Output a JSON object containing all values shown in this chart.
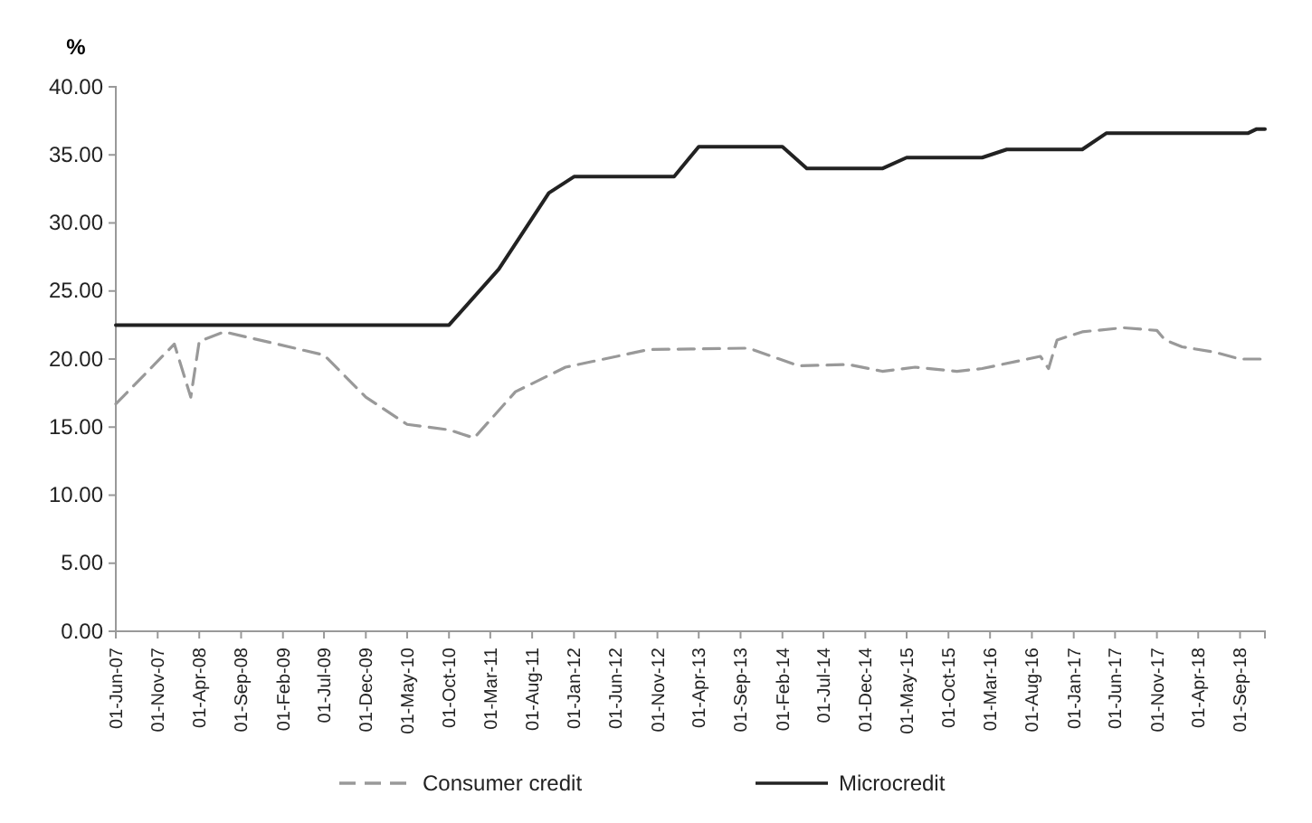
{
  "chart_data": {
    "type": "line",
    "ylabel": "%",
    "x": [
      "2007-06",
      "2008-01",
      "2008-03",
      "2008-04",
      "2008-07",
      "2009-07",
      "2009-12",
      "2010-05",
      "2010-10",
      "2011-01",
      "2011-06",
      "2011-12",
      "2012-10",
      "2013-10",
      "2014-04",
      "2014-10",
      "2015-02",
      "2015-06",
      "2015-11",
      "2016-02",
      "2016-09",
      "2016-10",
      "2016-11",
      "2017-02",
      "2017-07",
      "2017-11",
      "2017-12",
      "2018-02",
      "2018-06",
      "2018-09",
      "2018-12"
    ],
    "series": [
      {
        "name": "Consumer credit",
        "color": "#999999",
        "line_style": "dashed",
        "values": [
          16.7,
          21.1,
          17.2,
          21.3,
          22.0,
          20.3,
          17.2,
          15.2,
          14.8,
          14.2,
          17.6,
          19.4,
          20.7,
          20.8,
          19.5,
          19.6,
          19.1,
          19.4,
          19.1,
          19.3,
          20.2,
          19.3,
          21.4,
          22.0,
          22.3,
          22.1,
          21.4,
          20.9,
          20.5,
          20.0,
          20.0
        ]
      },
      {
        "name": "Microcredit",
        "color": "#222222",
        "line_style": "solid",
        "x": [
          "2007-06",
          "2010-10",
          "2011-04",
          "2011-10",
          "2012-01",
          "2013-01",
          "2013-04",
          "2014-02",
          "2014-05",
          "2015-02",
          "2015-05",
          "2016-02",
          "2016-05",
          "2017-02",
          "2017-05",
          "2018-10",
          "2018-11",
          "2018-12"
        ],
        "values": [
          22.5,
          22.5,
          26.6,
          32.2,
          33.4,
          33.4,
          35.6,
          35.6,
          34.0,
          34.0,
          34.8,
          34.8,
          35.4,
          35.4,
          36.6,
          36.6,
          36.9,
          36.9
        ]
      }
    ],
    "xlim": [
      "2007-06",
      "2018-12"
    ],
    "xticks": [
      {
        "value": "2007-06",
        "label": "01-Jun-07"
      },
      {
        "value": "2007-11",
        "label": "01-Nov-07"
      },
      {
        "value": "2008-04",
        "label": "01-Apr-08"
      },
      {
        "value": "2008-09",
        "label": "01-Sep-08"
      },
      {
        "value": "2009-02",
        "label": "01-Feb-09"
      },
      {
        "value": "2009-07",
        "label": "01-Jul-09"
      },
      {
        "value": "2009-12",
        "label": "01-Dec-09"
      },
      {
        "value": "2010-05",
        "label": "01-May-10"
      },
      {
        "value": "2010-10",
        "label": "01-Oct-10"
      },
      {
        "value": "2011-03",
        "label": "01-Mar-11"
      },
      {
        "value": "2011-08",
        "label": "01-Aug-11"
      },
      {
        "value": "2012-01",
        "label": "01-Jan-12"
      },
      {
        "value": "2012-06",
        "label": "01-Jun-12"
      },
      {
        "value": "2012-11",
        "label": "01-Nov-12"
      },
      {
        "value": "2013-04",
        "label": "01-Apr-13"
      },
      {
        "value": "2013-09",
        "label": "01-Sep-13"
      },
      {
        "value": "2014-02",
        "label": "01-Feb-14"
      },
      {
        "value": "2014-07",
        "label": "01-Jul-14"
      },
      {
        "value": "2014-12",
        "label": "01-Dec-14"
      },
      {
        "value": "2015-05",
        "label": "01-May-15"
      },
      {
        "value": "2015-10",
        "label": "01-Oct-15"
      },
      {
        "value": "2016-03",
        "label": "01-Mar-16"
      },
      {
        "value": "2016-08",
        "label": "01-Aug-16"
      },
      {
        "value": "2017-01",
        "label": "01-Jan-17"
      },
      {
        "value": "2017-06",
        "label": "01-Jun-17"
      },
      {
        "value": "2017-11",
        "label": "01-Nov-17"
      },
      {
        "value": "2018-04",
        "label": "01-Apr-18"
      },
      {
        "value": "2018-09",
        "label": "01-Sep-18"
      }
    ],
    "ylim": [
      0,
      40
    ],
    "yticks": [
      {
        "value": 0,
        "label": "0.00"
      },
      {
        "value": 5,
        "label": "5.00"
      },
      {
        "value": 10,
        "label": "10.00"
      },
      {
        "value": 15,
        "label": "15.00"
      },
      {
        "value": 20,
        "label": "20.00"
      },
      {
        "value": 25,
        "label": "25.00"
      },
      {
        "value": 30,
        "label": "30.00"
      },
      {
        "value": 35,
        "label": "35.00"
      },
      {
        "value": 40,
        "label": "40.00"
      }
    ],
    "legend": "bottom"
  }
}
